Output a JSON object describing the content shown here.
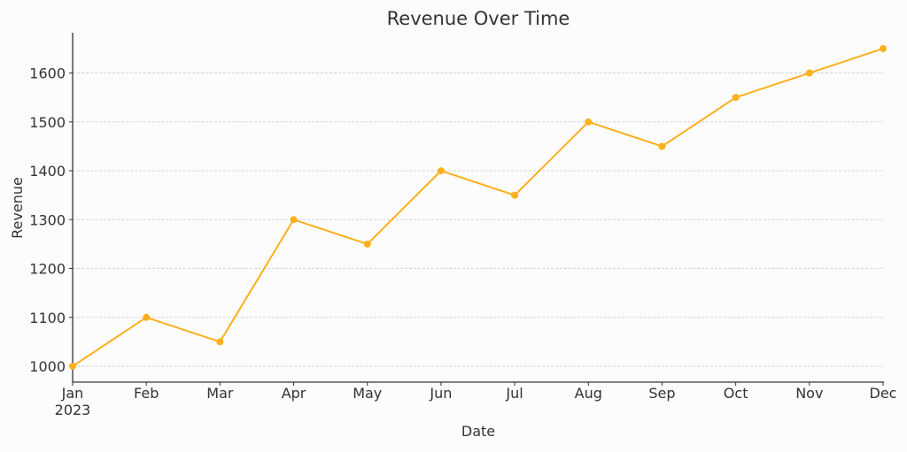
{
  "chart_data": {
    "type": "line",
    "title": "Revenue Over Time",
    "xlabel": "Date",
    "ylabel": "Revenue",
    "categories": [
      "Jan\n2023",
      "Feb",
      "Mar",
      "Apr",
      "May",
      "Jun",
      "Jul",
      "Aug",
      "Sep",
      "Oct",
      "Nov",
      "Dec"
    ],
    "x": [
      "2023-01",
      "2023-02",
      "2023-03",
      "2023-04",
      "2023-05",
      "2023-06",
      "2023-07",
      "2023-08",
      "2023-09",
      "2023-10",
      "2023-11",
      "2023-12"
    ],
    "values": [
      1000,
      1100,
      1050,
      1300,
      1250,
      1400,
      1350,
      1500,
      1450,
      1550,
      1600,
      1650
    ],
    "yticks": [
      1000,
      1100,
      1200,
      1300,
      1400,
      1500,
      1600
    ],
    "ylim": [
      967.5,
      1682.5
    ],
    "grid": "horizontal dashed",
    "legend": "none",
    "line_color": "#fbb01c"
  }
}
